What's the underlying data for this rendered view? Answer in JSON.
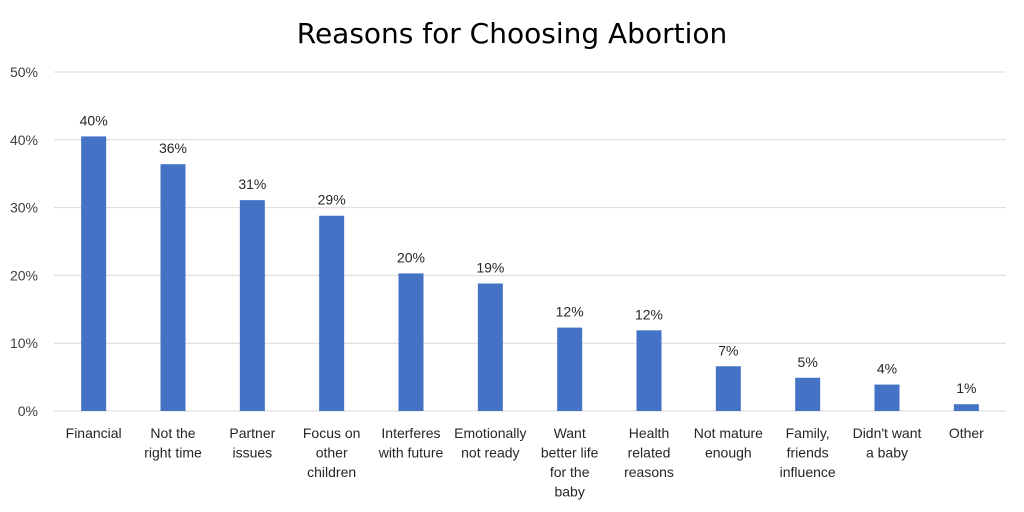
{
  "chart_data": {
    "type": "bar",
    "title": "Reasons for Choosing Abortion",
    "categories": [
      [
        "Financial"
      ],
      [
        "Not the",
        "right time"
      ],
      [
        "Partner",
        "issues"
      ],
      [
        "Focus on",
        "other",
        "children"
      ],
      [
        "Interferes",
        "with future"
      ],
      [
        "Emotionally",
        "not ready"
      ],
      [
        "Want",
        "better life",
        "for the",
        "baby"
      ],
      [
        "Health",
        "related",
        "reasons"
      ],
      [
        "Not mature",
        "enough"
      ],
      [
        "Family,",
        "friends",
        "influence"
      ],
      [
        "Didn't want",
        "a baby"
      ],
      [
        "Other"
      ]
    ],
    "values": [
      40.5,
      36.4,
      31.1,
      28.8,
      20.3,
      18.8,
      12.3,
      11.9,
      6.6,
      4.9,
      3.9,
      1.0
    ],
    "data_labels": [
      "40%",
      "36%",
      "31%",
      "29%",
      "20%",
      "19%",
      "12%",
      "12%",
      "7%",
      "5%",
      "4%",
      "1%"
    ],
    "yticks": [
      0,
      10,
      20,
      30,
      40,
      50
    ],
    "ytick_labels": [
      "0%",
      "10%",
      "20%",
      "30%",
      "40%",
      "50%"
    ],
    "ylim": [
      0,
      50
    ],
    "xlabel": "",
    "ylabel": "",
    "grid": true,
    "bar_color": "#4472c4"
  }
}
